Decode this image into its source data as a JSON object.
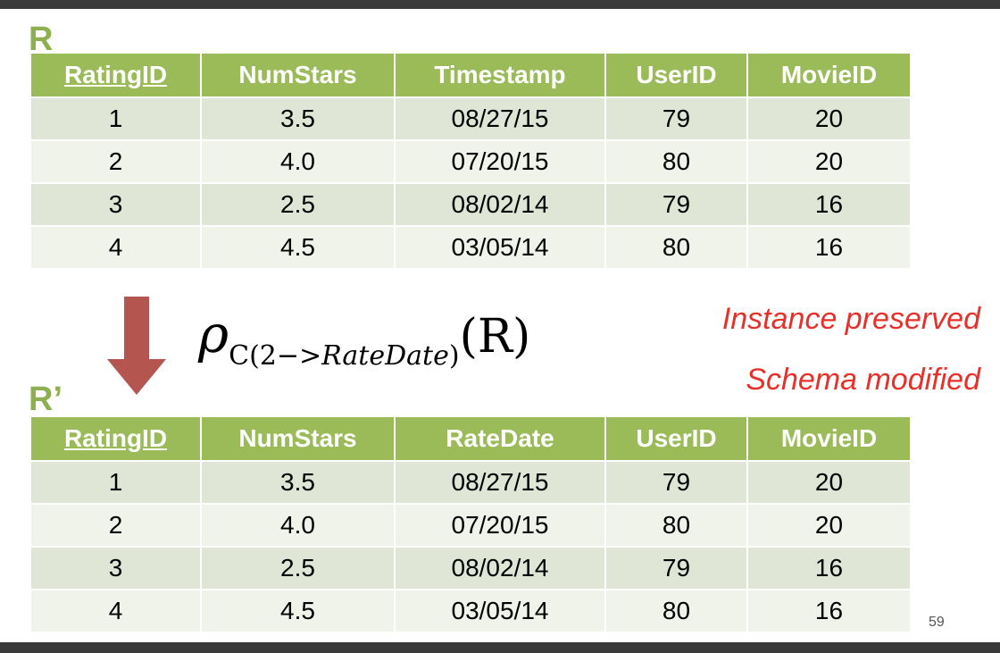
{
  "original": {
    "label": "R",
    "columns": [
      "RatingID",
      "NumStars",
      "Timestamp",
      "UserID",
      "MovieID"
    ],
    "rows": [
      [
        "1",
        "3.5",
        "08/27/15",
        "79",
        "20"
      ],
      [
        "2",
        "4.0",
        "07/20/15",
        "80",
        "20"
      ],
      [
        "3",
        "2.5",
        "08/02/14",
        "79",
        "16"
      ],
      [
        "4",
        "4.5",
        "03/05/14",
        "80",
        "16"
      ]
    ]
  },
  "renamed": {
    "label": "R’",
    "columns": [
      "RatingID",
      "NumStars",
      "RateDate",
      "UserID",
      "MovieID"
    ],
    "rows": [
      [
        "1",
        "3.5",
        "08/27/15",
        "79",
        "20"
      ],
      [
        "2",
        "4.0",
        "07/20/15",
        "80",
        "20"
      ],
      [
        "3",
        "2.5",
        "08/02/14",
        "79",
        "16"
      ],
      [
        "4",
        "4.5",
        "03/05/14",
        "80",
        "16"
      ]
    ]
  },
  "operation": {
    "symbol": "ρ",
    "subscript_prefix": "C(2−>",
    "subscript_new_name": "RateDate",
    "subscript_suffix": ")",
    "argument": "(R)"
  },
  "notes": {
    "instance": "Instance preserved",
    "schema": "Schema modified"
  },
  "page_number": "59",
  "colors": {
    "header": "#9bbb59",
    "label": "#8fb050",
    "arrow": "#b5554f",
    "note": "#e8302a"
  }
}
